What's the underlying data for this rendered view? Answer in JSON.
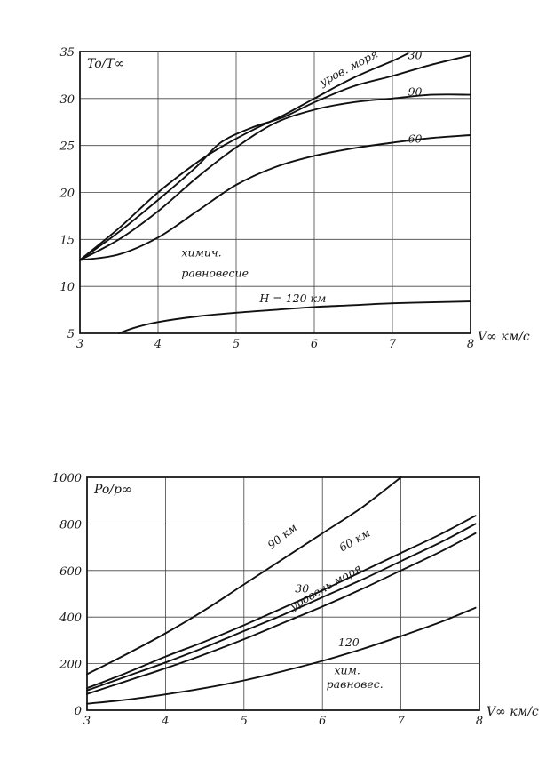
{
  "chart_data": [
    {
      "type": "line",
      "ylabel": "To/T∞",
      "xlabel": "V∞ км/с",
      "xlim": [
        3,
        8
      ],
      "ylim": [
        5,
        35
      ],
      "x_ticks": [
        3,
        4,
        5,
        6,
        7,
        8
      ],
      "y_ticks": [
        5,
        10,
        15,
        20,
        25,
        30,
        35
      ],
      "grid": true,
      "annotations": [
        {
          "text": "химич.",
          "x": 4.3,
          "y": 13.2
        },
        {
          "text": "равновесие",
          "x": 4.3,
          "y": 11
        },
        {
          "text": "H = 120 км",
          "x": 5.3,
          "y": 8.3
        }
      ],
      "series": [
        {
          "name": "уров. моря",
          "label_at": [
            6.1,
            31.3
          ],
          "label_rotate": -28,
          "x": [
            3,
            3.5,
            4,
            4.5,
            4.8,
            5.2,
            5.6,
            6.0,
            6.5,
            7.0,
            7.2
          ],
          "y": [
            12.8,
            16.2,
            20.0,
            23.2,
            24.8,
            26.6,
            28.2,
            30.0,
            32.2,
            34.0,
            34.8
          ]
        },
        {
          "name": "30",
          "label_at": [
            7.2,
            34.2
          ],
          "label_rotate": 0,
          "x": [
            3,
            3.5,
            4,
            4.5,
            4.8,
            5.2,
            5.6,
            6.0,
            6.5,
            7.0,
            7.5,
            8.0
          ],
          "y": [
            12.8,
            15.8,
            19.2,
            22.8,
            25.3,
            26.9,
            28.0,
            29.6,
            31.3,
            32.4,
            33.6,
            34.6
          ]
        },
        {
          "name": "90",
          "label_at": [
            7.2,
            30.3
          ],
          "label_rotate": 0,
          "x": [
            3,
            3.5,
            4,
            4.5,
            5.0,
            5.5,
            6.0,
            6.5,
            7.0,
            7.5,
            8.0
          ],
          "y": [
            12.8,
            15.0,
            18.0,
            21.6,
            24.8,
            27.4,
            28.8,
            29.6,
            30.0,
            30.4,
            30.4
          ]
        },
        {
          "name": "60",
          "label_at": [
            7.2,
            25.3
          ],
          "label_rotate": 0,
          "x": [
            3,
            3.5,
            4,
            4.5,
            5.0,
            5.5,
            6.0,
            6.5,
            7.0,
            7.5,
            8.0
          ],
          "y": [
            12.8,
            13.4,
            15.2,
            18.0,
            20.8,
            22.7,
            23.9,
            24.7,
            25.3,
            25.8,
            26.1
          ]
        },
        {
          "name": "120",
          "label_at": null,
          "label_rotate": 0,
          "x": [
            3.5,
            3.7,
            4,
            4.5,
            5.0,
            5.5,
            6.0,
            6.5,
            7.0,
            7.5,
            8.0
          ],
          "y": [
            5.0,
            5.6,
            6.2,
            6.8,
            7.2,
            7.5,
            7.8,
            8.0,
            8.2,
            8.3,
            8.4
          ]
        }
      ]
    },
    {
      "type": "line",
      "ylabel": "Po/p∞",
      "xlabel": "V∞ км/с",
      "xlim": [
        3,
        8
      ],
      "ylim": [
        0,
        1000
      ],
      "x_ticks": [
        3,
        4,
        5,
        6,
        7,
        8
      ],
      "y_ticks": [
        0,
        200,
        400,
        600,
        800,
        1000
      ],
      "grid": true,
      "annotations": [
        {
          "text": "хим.",
          "x": 6.15,
          "y": 155
        },
        {
          "text": "равновес.",
          "x": 6.05,
          "y": 95
        }
      ],
      "series": [
        {
          "name": "90 км",
          "label_at": [
            5.35,
            690
          ],
          "label_rotate": -38,
          "x": [
            3,
            3.5,
            4,
            4.5,
            5,
            5.5,
            6,
            6.5,
            7.0
          ],
          "y": [
            155,
            240,
            330,
            430,
            540,
            650,
            760,
            870,
            1000
          ]
        },
        {
          "name": "60 км",
          "label_at": [
            6.25,
            680
          ],
          "label_rotate": -30,
          "x": [
            3,
            3.5,
            4,
            4.5,
            5,
            5.5,
            6,
            6.5,
            7,
            7.5,
            7.95
          ],
          "y": [
            95,
            160,
            230,
            295,
            365,
            440,
            515,
            595,
            675,
            755,
            835
          ]
        },
        {
          "name": "30",
          "label_at": [
            5.65,
            505
          ],
          "label_rotate": 0,
          "x": [
            3,
            3.5,
            4,
            4.5,
            5,
            5.5,
            6,
            6.5,
            7,
            7.5,
            7.95
          ],
          "y": [
            85,
            145,
            205,
            270,
            340,
            410,
            485,
            560,
            640,
            720,
            800
          ]
        },
        {
          "name": "уровень моря",
          "label_at": [
            5.62,
            428
          ],
          "label_rotate": -30,
          "x": [
            3,
            3.5,
            4,
            4.5,
            5,
            5.5,
            6,
            6.5,
            7,
            7.5,
            7.95
          ],
          "y": [
            70,
            125,
            180,
            240,
            305,
            375,
            445,
            520,
            600,
            680,
            760
          ]
        },
        {
          "name": "120",
          "label_at": [
            6.2,
            275
          ],
          "label_rotate": 0,
          "x": [
            3,
            3.5,
            4,
            4.5,
            5,
            5.5,
            6,
            6.5,
            7,
            7.5,
            7.95
          ],
          "y": [
            28,
            45,
            68,
            95,
            128,
            168,
            212,
            262,
            318,
            378,
            440
          ]
        }
      ]
    }
  ]
}
